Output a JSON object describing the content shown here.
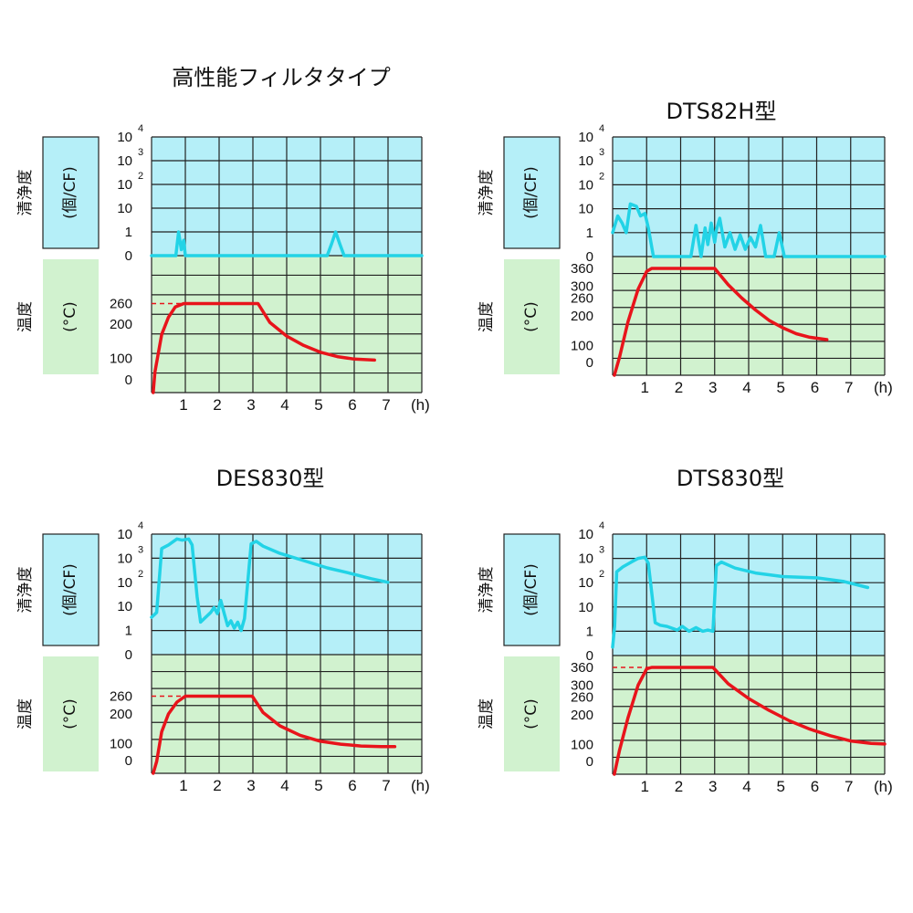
{
  "chart_data": [
    {
      "type": "line",
      "title": "高性能フィルタタイプ",
      "cleanliness_axis": {
        "label": "清浄度",
        "unit": "(個/CF)",
        "ticks": [
          "0",
          "1",
          "10",
          "10",
          "10",
          "10"
        ],
        "exponents": [
          "",
          "",
          "",
          "2",
          "3",
          "4"
        ]
      },
      "temperature_axis": {
        "label": "温度",
        "unit": "(°C)",
        "ticks": [
          "0",
          "100",
          "200",
          "260"
        ],
        "ylim": [
          0,
          400
        ]
      },
      "x_ticks": [
        "1",
        "2",
        "3",
        "4",
        "5",
        "6",
        "7"
      ],
      "x_unit": "(h)",
      "xlim": [
        0,
        8
      ],
      "reference_line": {
        "value": 260,
        "x_end": 1
      },
      "series": [
        {
          "color": "#22d3e6",
          "points": [
            [
              0,
              0
            ],
            [
              0.72,
              0
            ],
            [
              0.8,
              1
            ],
            [
              0.88,
              0.25
            ],
            [
              0.95,
              0.65
            ],
            [
              1.0,
              0
            ],
            [
              5.2,
              0
            ],
            [
              5.33,
              0.5
            ],
            [
              5.45,
              1
            ],
            [
              5.57,
              0.5
            ],
            [
              5.7,
              0
            ],
            [
              8,
              0
            ]
          ]
        },
        {
          "color": "#e8141b",
          "points": [
            [
              0.05,
              0
            ],
            [
              0.1,
              60
            ],
            [
              0.3,
              170
            ],
            [
              0.5,
              220
            ],
            [
              0.7,
              250
            ],
            [
              0.95,
              260
            ],
            [
              3.15,
              260
            ],
            [
              3.5,
              205
            ],
            [
              4.0,
              165
            ],
            [
              4.5,
              138
            ],
            [
              5.0,
              118
            ],
            [
              5.5,
              105
            ],
            [
              6.0,
              98
            ],
            [
              6.6,
              95
            ]
          ]
        }
      ]
    },
    {
      "type": "line",
      "title": "DTS82H型",
      "cleanliness_axis": {
        "label": "清浄度",
        "unit": "(個/CF)",
        "ticks": [
          "0",
          "1",
          "10",
          "10",
          "10",
          "10"
        ],
        "exponents": [
          "",
          "",
          "",
          "2",
          "3",
          "4"
        ]
      },
      "temperature_axis": {
        "label": "温度",
        "unit": "(°C)",
        "ticks": [
          "0",
          "100",
          "200",
          "260",
          "300",
          "360"
        ],
        "ylim": [
          0,
          400
        ]
      },
      "x_ticks": [
        "1",
        "2",
        "3",
        "4",
        "5",
        "6",
        "7"
      ],
      "x_unit": "(h)",
      "xlim": [
        0,
        8
      ],
      "reference_line": null,
      "series": [
        {
          "color": "#22d3e6",
          "points": [
            [
              0,
              1
            ],
            [
              0.15,
              1.7
            ],
            [
              0.28,
              1.4
            ],
            [
              0.4,
              1
            ],
            [
              0.52,
              2.2
            ],
            [
              0.7,
              2.1
            ],
            [
              0.82,
              1.7
            ],
            [
              0.95,
              1.8
            ],
            [
              1.05,
              1.2
            ],
            [
              1.2,
              0
            ],
            [
              2.3,
              0
            ],
            [
              2.45,
              1.3
            ],
            [
              2.6,
              0
            ],
            [
              2.72,
              1.2
            ],
            [
              2.8,
              0.5
            ],
            [
              2.9,
              1.4
            ],
            [
              3.0,
              0.6
            ],
            [
              3.05,
              1.1
            ],
            [
              3.15,
              1.6
            ],
            [
              3.3,
              0.4
            ],
            [
              3.45,
              1
            ],
            [
              3.6,
              0.3
            ],
            [
              3.75,
              0.9
            ],
            [
              3.9,
              0.3
            ],
            [
              4.05,
              0.8
            ],
            [
              4.2,
              0.4
            ],
            [
              4.35,
              1.3
            ],
            [
              4.5,
              0
            ],
            [
              4.75,
              0
            ],
            [
              4.9,
              1
            ],
            [
              5.05,
              0
            ],
            [
              8,
              0
            ]
          ]
        },
        {
          "color": "#e8141b",
          "points": [
            [
              0.05,
              0
            ],
            [
              0.2,
              60
            ],
            [
              0.45,
              180
            ],
            [
              0.75,
              290
            ],
            [
              1.0,
              350
            ],
            [
              1.15,
              360
            ],
            [
              3.0,
              360
            ],
            [
              3.4,
              305
            ],
            [
              3.8,
              260
            ],
            [
              4.2,
              220
            ],
            [
              4.6,
              185
            ],
            [
              5.0,
              160
            ],
            [
              5.4,
              140
            ],
            [
              5.8,
              128
            ],
            [
              6.3,
              120
            ]
          ]
        }
      ]
    },
    {
      "type": "line",
      "title": "DES830型",
      "cleanliness_axis": {
        "label": "清浄度",
        "unit": "(個/CF)",
        "ticks": [
          "0",
          "1",
          "10",
          "10",
          "10",
          "10"
        ],
        "exponents": [
          "",
          "",
          "",
          "2",
          "3",
          "4"
        ]
      },
      "temperature_axis": {
        "label": "温度",
        "unit": "(°C)",
        "ticks": [
          "0",
          "100",
          "200",
          "260"
        ],
        "ylim": [
          0,
          400
        ]
      },
      "x_ticks": [
        "1",
        "2",
        "3",
        "4",
        "5",
        "6",
        "7"
      ],
      "x_unit": "(h)",
      "xlim": [
        0,
        8
      ],
      "reference_line": {
        "value": 260,
        "x_end": 1
      },
      "series": [
        {
          "color": "#22d3e6",
          "points": [
            [
              0,
              1.55
            ],
            [
              0.15,
              1.75
            ],
            [
              0.3,
              4.4
            ],
            [
              0.5,
              4.55
            ],
            [
              0.75,
              4.8
            ],
            [
              0.9,
              4.75
            ],
            [
              1.1,
              4.8
            ],
            [
              1.2,
              4.55
            ],
            [
              1.35,
              2.4
            ],
            [
              1.45,
              1.35
            ],
            [
              1.75,
              1.75
            ],
            [
              1.85,
              1.95
            ],
            [
              1.95,
              1.7
            ],
            [
              2.05,
              2.25
            ],
            [
              2.15,
              1.7
            ],
            [
              2.25,
              1.2
            ],
            [
              2.35,
              1.4
            ],
            [
              2.45,
              1.1
            ],
            [
              2.55,
              1.35
            ],
            [
              2.65,
              1.0
            ],
            [
              2.75,
              1.5
            ],
            [
              2.95,
              4.6
            ],
            [
              3.1,
              4.7
            ],
            [
              3.3,
              4.5
            ],
            [
              3.8,
              4.2
            ],
            [
              4.5,
              3.9
            ],
            [
              5.2,
              3.6
            ],
            [
              5.8,
              3.4
            ],
            [
              6.5,
              3.15
            ],
            [
              7.0,
              3.0
            ]
          ]
        },
        {
          "color": "#e8141b",
          "points": [
            [
              0.05,
              0
            ],
            [
              0.15,
              40
            ],
            [
              0.3,
              140
            ],
            [
              0.5,
              200
            ],
            [
              0.75,
              240
            ],
            [
              1.0,
              260
            ],
            [
              2.98,
              260
            ],
            [
              3.3,
              205
            ],
            [
              3.8,
              160
            ],
            [
              4.4,
              128
            ],
            [
              5.0,
              108
            ],
            [
              5.6,
              98
            ],
            [
              6.2,
              92
            ],
            [
              6.8,
              90
            ],
            [
              7.2,
              90
            ]
          ]
        }
      ]
    },
    {
      "type": "line",
      "title": "DTS830型",
      "cleanliness_axis": {
        "label": "清浄度",
        "unit": "(個/CF)",
        "ticks": [
          "0",
          "1",
          "10",
          "10",
          "10",
          "10"
        ],
        "exponents": [
          "",
          "",
          "",
          "2",
          "3",
          "4"
        ]
      },
      "temperature_axis": {
        "label": "温度",
        "unit": "(°C)",
        "ticks": [
          "0",
          "100",
          "200",
          "260",
          "300",
          "360"
        ],
        "ylim": [
          0,
          400
        ]
      },
      "x_ticks": [
        "1",
        "2",
        "3",
        "4",
        "5",
        "6",
        "7"
      ],
      "x_unit": "(h)",
      "xlim": [
        0,
        8
      ],
      "reference_line": {
        "value": 360,
        "x_end": 1.2
      },
      "series": [
        {
          "color": "#22d3e6",
          "points": [
            [
              0,
              0.35
            ],
            [
              0.06,
              1.2
            ],
            [
              0.12,
              3.45
            ],
            [
              0.3,
              3.65
            ],
            [
              0.55,
              3.85
            ],
            [
              0.75,
              4.0
            ],
            [
              0.95,
              4.05
            ],
            [
              1.05,
              3.8
            ],
            [
              1.15,
              2.6
            ],
            [
              1.25,
              1.35
            ],
            [
              1.4,
              1.25
            ],
            [
              1.6,
              1.2
            ],
            [
              1.9,
              1.05
            ],
            [
              2.05,
              1.2
            ],
            [
              2.25,
              1.0
            ],
            [
              2.45,
              1.15
            ],
            [
              2.65,
              1.0
            ],
            [
              2.8,
              1.05
            ],
            [
              2.95,
              1.0
            ],
            [
              3.05,
              3.7
            ],
            [
              3.2,
              3.85
            ],
            [
              3.6,
              3.6
            ],
            [
              4.2,
              3.4
            ],
            [
              5.0,
              3.25
            ],
            [
              6.0,
              3.2
            ],
            [
              6.8,
              3.05
            ],
            [
              7.5,
              2.8
            ]
          ]
        },
        {
          "color": "#e8141b",
          "points": [
            [
              0.05,
              0
            ],
            [
              0.2,
              80
            ],
            [
              0.45,
              190
            ],
            [
              0.75,
              300
            ],
            [
              1.0,
              355
            ],
            [
              1.15,
              360
            ],
            [
              2.95,
              360
            ],
            [
              3.4,
              305
            ],
            [
              4.0,
              255
            ],
            [
              4.6,
              215
            ],
            [
              5.2,
              180
            ],
            [
              5.8,
              152
            ],
            [
              6.4,
              130
            ],
            [
              7.0,
              112
            ],
            [
              7.6,
              104
            ],
            [
              8.0,
              102
            ]
          ]
        }
      ]
    }
  ]
}
